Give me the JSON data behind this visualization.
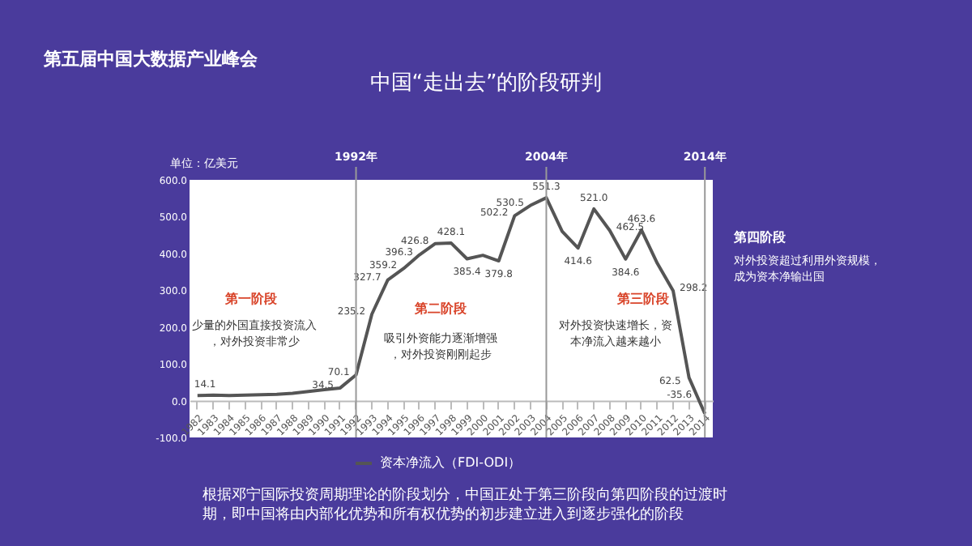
{
  "chart_data": {
    "type": "line",
    "title": "中国“走出去”的阶段研判",
    "ylabel": "单位：亿美元",
    "categories": [
      "1982",
      "1983",
      "1984",
      "1985",
      "1986",
      "1987",
      "1988",
      "1989",
      "1990",
      "1991",
      "1992",
      "1993",
      "1994",
      "1995",
      "1996",
      "1997",
      "1998",
      "1999",
      "2000",
      "2001",
      "2002",
      "2003",
      "2004",
      "2005",
      "2006",
      "2007",
      "2008",
      "2009",
      "2010",
      "2011",
      "2012",
      "2013",
      "2014"
    ],
    "series": [
      {
        "name": "资本净流入（FDI-ODI）",
        "color": "#555555",
        "values": [
          14.1,
          15,
          14,
          15,
          16,
          17,
          20,
          25,
          30,
          34.5,
          70.1,
          235.2,
          327.7,
          359.2,
          396.3,
          426.8,
          428.1,
          385.4,
          395,
          379.8,
          502.2,
          530.5,
          551.3,
          460,
          414.6,
          521.0,
          462.5,
          384.6,
          463.6,
          373,
          298.2,
          62.5,
          -35.6
        ],
        "value_labels": [
          "14.1",
          null,
          null,
          null,
          null,
          null,
          null,
          null,
          null,
          "34.5",
          "70.1",
          "235.2",
          "327.7",
          "359.2",
          "396.3",
          "426.8",
          "428.1",
          "385.4",
          null,
          "379.8",
          "502.2",
          "530.5",
          "551.3",
          null,
          "414.6",
          "521.0",
          "462.5",
          "384.6",
          "463.6",
          null,
          "298.2",
          "62.5",
          "-35.6"
        ]
      }
    ],
    "ylim": [
      -100,
      600
    ],
    "yticks": [
      {
        "value": -100,
        "label": "-100.0"
      },
      {
        "value": 0,
        "label": "0.0"
      },
      {
        "value": 100,
        "label": "100.0"
      },
      {
        "value": 200,
        "label": "200.0"
      },
      {
        "value": 300,
        "label": "300.0"
      },
      {
        "value": 400,
        "label": "400.0"
      },
      {
        "value": 500,
        "label": "500.0"
      },
      {
        "value": 600,
        "label": "600.0"
      }
    ],
    "ref_lines": [
      {
        "axis": "x",
        "value": "1992",
        "label": "1992年",
        "color": "#999999"
      },
      {
        "axis": "x",
        "value": "2004",
        "label": "2004年",
        "color": "#999999"
      },
      {
        "axis": "x",
        "value": "2014",
        "label": "2014年",
        "color": "#999999"
      }
    ],
    "legend": "bottom",
    "grid": false,
    "marker": "none",
    "line_style": "solid",
    "annotations": [
      "第五届中国大数据产业峰会",
      "第一阶段",
      "少量的外国直接投资流入，对外投资非常少",
      "第二阶段",
      "吸引外资能力逐渐增强，对外投资刚刚起步",
      "第三阶段",
      "对外投资快速增长，资本净流入越来越小",
      "第四阶段",
      "对外投资超过利用外资规模，成为资本净输出国",
      "根据邓宁国际投资周期理论的阶段划分，中国正处于第三阶段向第四阶段的过渡时期，即中国将由内部化优势和所有权优势的初步建立进入到逐步强化的阶段"
    ]
  }
}
